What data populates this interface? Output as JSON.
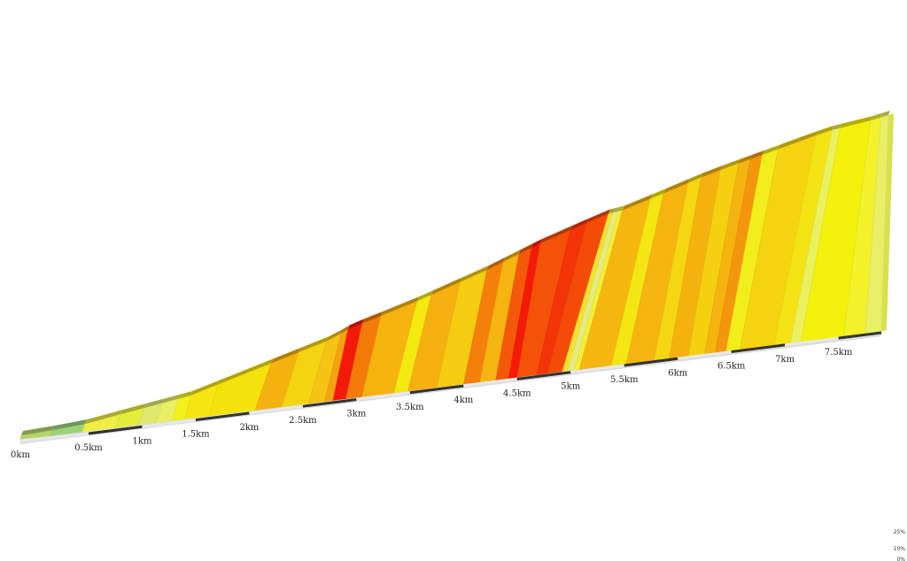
{
  "chart_data": {
    "type": "area",
    "description_units": {
      "x": "km",
      "value": "gradient %"
    },
    "x_range": [
      0,
      7.9
    ],
    "distance_labels": [
      "0km",
      "0.5km",
      "1km",
      "1.5km",
      "2km",
      "2.5km",
      "3km",
      "3.5km",
      "4km",
      "4.5km",
      "5km",
      "5.5km",
      "6km",
      "6.5km",
      "7km",
      "7.5km"
    ],
    "segments": [
      {
        "start": 0.0,
        "end": 0.22,
        "color": "#b5d36a"
      },
      {
        "start": 0.22,
        "end": 0.45,
        "color": "#9cd17a"
      },
      {
        "start": 0.45,
        "end": 0.75,
        "color": "#eeee44"
      },
      {
        "start": 0.75,
        "end": 0.95,
        "color": "#e6ec3c"
      },
      {
        "start": 0.95,
        "end": 1.12,
        "color": "#dfe86b"
      },
      {
        "start": 1.12,
        "end": 1.28,
        "color": "#e9ee62"
      },
      {
        "start": 1.28,
        "end": 1.4,
        "color": "#f2f21a"
      },
      {
        "start": 1.4,
        "end": 1.62,
        "color": "#f5e512"
      },
      {
        "start": 1.62,
        "end": 2.05,
        "color": "#f4e20c"
      },
      {
        "start": 2.05,
        "end": 2.3,
        "color": "#f5b10e"
      },
      {
        "start": 2.3,
        "end": 2.55,
        "color": "#f4d411"
      },
      {
        "start": 2.55,
        "end": 2.7,
        "color": "#f5c314"
      },
      {
        "start": 2.7,
        "end": 2.78,
        "color": "#f4a210"
      },
      {
        "start": 2.78,
        "end": 2.9,
        "color": "#f41a09"
      },
      {
        "start": 2.9,
        "end": 3.05,
        "color": "#f47a09"
      },
      {
        "start": 3.05,
        "end": 3.35,
        "color": "#f5b30d"
      },
      {
        "start": 3.35,
        "end": 3.48,
        "color": "#f4ea12"
      },
      {
        "start": 3.48,
        "end": 3.75,
        "color": "#f5b00f"
      },
      {
        "start": 3.75,
        "end": 4.0,
        "color": "#f4cc11"
      },
      {
        "start": 4.0,
        "end": 4.15,
        "color": "#f47f0a"
      },
      {
        "start": 4.15,
        "end": 4.3,
        "color": "#f5b40f"
      },
      {
        "start": 4.3,
        "end": 4.42,
        "color": "#f4590a"
      },
      {
        "start": 4.42,
        "end": 4.5,
        "color": "#f41a06"
      },
      {
        "start": 4.5,
        "end": 4.68,
        "color": "#f45209"
      },
      {
        "start": 4.68,
        "end": 4.78,
        "color": "#f43306"
      },
      {
        "start": 4.78,
        "end": 4.92,
        "color": "#f44b09"
      },
      {
        "start": 4.92,
        "end": 4.97,
        "color": "#f5e22a"
      },
      {
        "start": 4.97,
        "end": 5.03,
        "color": "#e6ea82"
      },
      {
        "start": 5.03,
        "end": 5.08,
        "color": "#f3ef38"
      },
      {
        "start": 5.08,
        "end": 5.38,
        "color": "#f5b60f"
      },
      {
        "start": 5.38,
        "end": 5.52,
        "color": "#f4e612"
      },
      {
        "start": 5.52,
        "end": 5.78,
        "color": "#f5b40f"
      },
      {
        "start": 5.78,
        "end": 5.92,
        "color": "#f4d611"
      },
      {
        "start": 5.92,
        "end": 6.1,
        "color": "#f5b20f"
      },
      {
        "start": 6.1,
        "end": 6.25,
        "color": "#f4d011"
      },
      {
        "start": 6.25,
        "end": 6.35,
        "color": "#f5b30f"
      },
      {
        "start": 6.35,
        "end": 6.45,
        "color": "#f4960d"
      },
      {
        "start": 6.45,
        "end": 6.58,
        "color": "#f2ee1b"
      },
      {
        "start": 6.58,
        "end": 6.9,
        "color": "#f5d311"
      },
      {
        "start": 6.9,
        "end": 7.05,
        "color": "#f4e312"
      },
      {
        "start": 7.05,
        "end": 7.15,
        "color": "#eaf05e"
      },
      {
        "start": 7.15,
        "end": 7.55,
        "color": "#f3f10c"
      },
      {
        "start": 7.55,
        "end": 7.75,
        "color": "#f3f22a"
      },
      {
        "start": 7.75,
        "end": 7.9,
        "color": "#e8ee66"
      }
    ],
    "legend": {
      "labels": [
        "25%",
        "10%",
        "0%"
      ]
    }
  }
}
